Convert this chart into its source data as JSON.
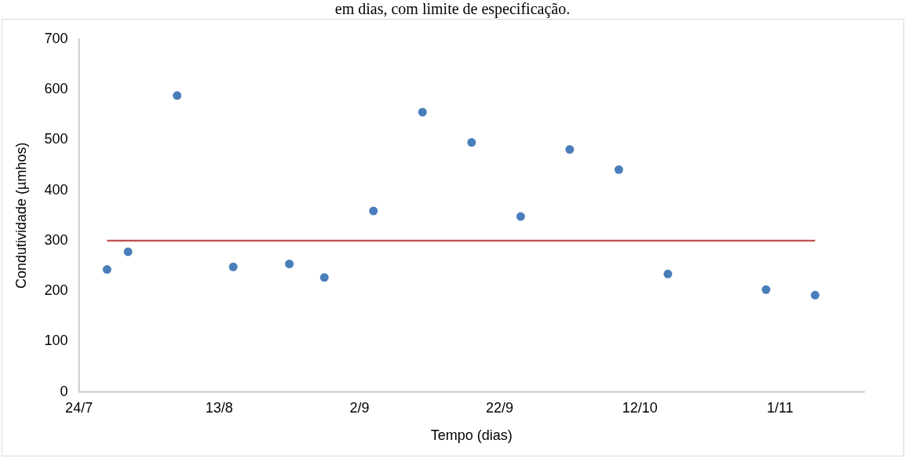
{
  "chart_data": {
    "type": "scatter",
    "title": "em dias, com limite de especificação.",
    "xlabel": "Tempo (dias)",
    "ylabel": "Condutividade (µmhos)",
    "xlim": [
      "--07-24",
      "--11-13"
    ],
    "xticks": [
      {
        "value": "--07-24",
        "label": "24/7"
      },
      {
        "value": "--08-13",
        "label": "13/8"
      },
      {
        "value": "--09-02",
        "label": "2/9"
      },
      {
        "value": "--09-22",
        "label": "22/9"
      },
      {
        "value": "--10-12",
        "label": "12/10"
      },
      {
        "value": "--11-01",
        "label": "1/11"
      }
    ],
    "ylim": [
      0,
      700
    ],
    "yticks": [
      0,
      100,
      200,
      300,
      400,
      500,
      600,
      700
    ],
    "grid": false,
    "legend": false,
    "marker": "circle",
    "series": [
      {
        "color": "#4a7ebb",
        "x": [
          "--07-28",
          "--07-31",
          "--08-07",
          "--08-15",
          "--08-23",
          "--08-28",
          "--09-04",
          "--09-11",
          "--09-18",
          "--09-25",
          "--10-02",
          "--10-09",
          "--10-16",
          "--10-30",
          "--11-06"
        ],
        "values": [
          243,
          278,
          588,
          248,
          254,
          227,
          359,
          555,
          495,
          348,
          481,
          441,
          234,
          203,
          192
        ]
      },
      {
        "type": "line",
        "color": "#c0504d",
        "marker": "none",
        "x": [
          "--07-28",
          "--11-06"
        ],
        "values": [
          300,
          300
        ]
      }
    ]
  }
}
